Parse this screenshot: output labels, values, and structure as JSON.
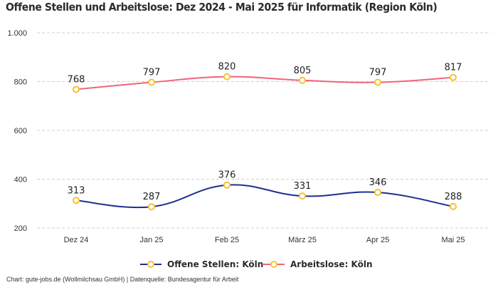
{
  "chart_data": {
    "type": "line",
    "title": "Offene Stellen und Arbeitslose: Dez 2024 - Mai 2025 für Informatik (Region Köln)",
    "categories": [
      "Dez 24",
      "Jan 25",
      "Feb 25",
      "März 25",
      "Apr 25",
      "Mai 25"
    ],
    "series": [
      {
        "name": "Offene Stellen: Köln",
        "color": "#1e2f8f",
        "values": [
          313,
          287,
          376,
          331,
          346,
          288
        ]
      },
      {
        "name": "Arbeitslose: Köln",
        "color": "#f0647c",
        "values": [
          768,
          797,
          820,
          805,
          797,
          817
        ]
      }
    ],
    "marker_color": "#f5c232",
    "ylim": [
      200,
      1000
    ],
    "yticks": [
      200,
      400,
      600,
      800,
      1000
    ],
    "ytick_labels": [
      "200",
      "400",
      "600",
      "800",
      "1.000"
    ],
    "grid": true,
    "legend": "bottom-center",
    "xlabel": "",
    "ylabel": ""
  },
  "footer": "Chart: gute-jobs.de (Wollmilchsau GmbH) | Datenquelle: Bundesagentur für Arbeit"
}
